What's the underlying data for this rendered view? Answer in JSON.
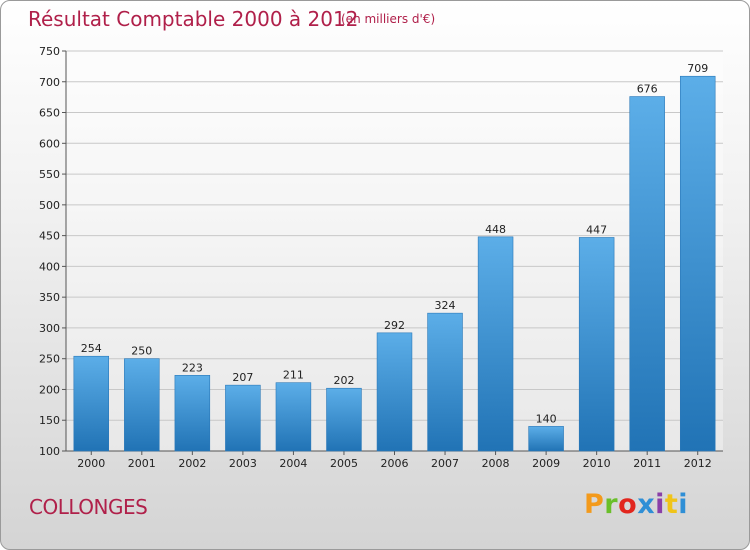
{
  "title": "Résultat Comptable 2000 à 2012",
  "subtitle": "(en milliers d'€)",
  "commune": "COLLONGES",
  "logo": {
    "text": "Proxiti",
    "colors": [
      "#f39a1c",
      "#6abf2a",
      "#e2261d",
      "#2f8fd6",
      "#8a3fa8",
      "#f0c419",
      "#2f8fd6"
    ]
  },
  "colors": {
    "bar_top": "#5caee8",
    "bar_bottom": "#2173b5",
    "accent": "#b0204a"
  },
  "chart_data": {
    "type": "bar",
    "title": "Résultat Comptable 2000 à 2012",
    "subtitle": "(en milliers d'€)",
    "categories": [
      "2000",
      "2001",
      "2002",
      "2003",
      "2004",
      "2005",
      "2006",
      "2007",
      "2008",
      "2009",
      "2010",
      "2011",
      "2012"
    ],
    "values": [
      254,
      250,
      223,
      207,
      211,
      202,
      292,
      324,
      448,
      140,
      447,
      676,
      709
    ],
    "ylim": [
      100,
      750
    ],
    "yticks": [
      100,
      150,
      200,
      250,
      300,
      350,
      400,
      450,
      500,
      550,
      600,
      650,
      700,
      750
    ],
    "grid": true
  }
}
